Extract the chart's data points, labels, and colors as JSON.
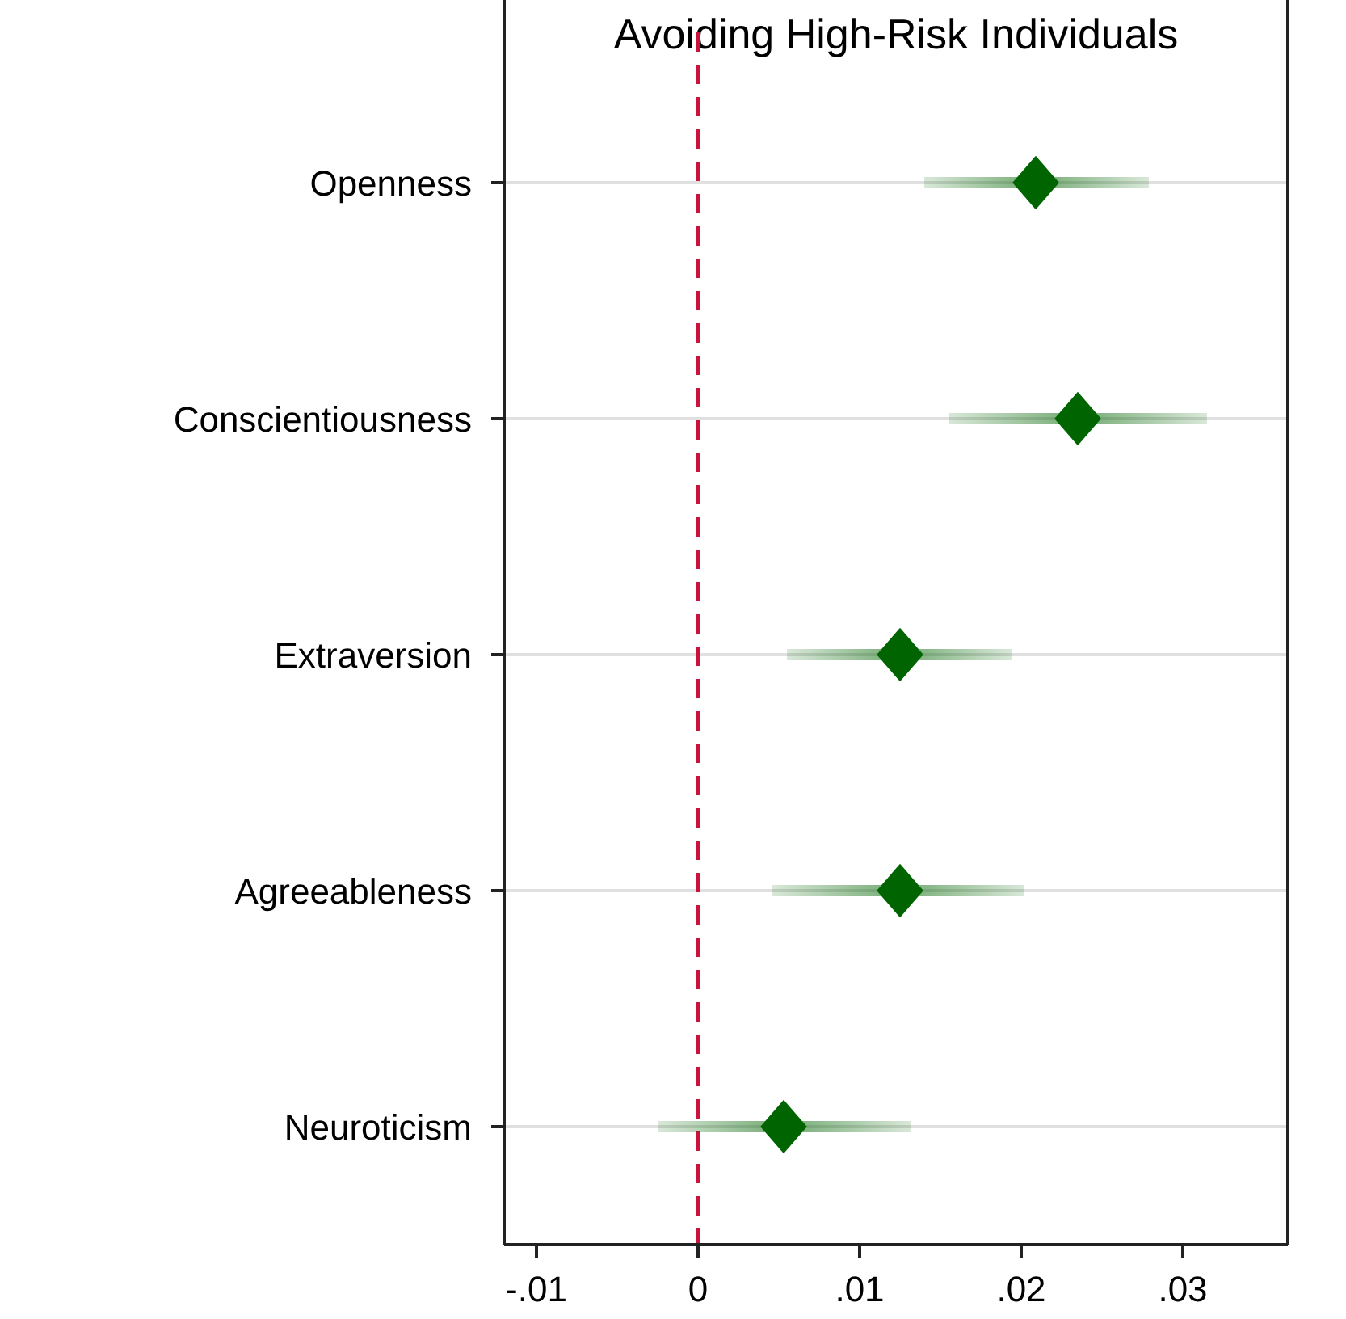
{
  "chart_data": {
    "type": "scatter",
    "orientation": "horizontal",
    "title": "Avoiding High-Risk Individuals",
    "categories": [
      "Openness",
      "Conscientiousness",
      "Extraversion",
      "Agreeableness",
      "Neuroticism"
    ],
    "series": [
      {
        "color": "#006400",
        "values": [
          0.0209,
          0.0235,
          0.0125,
          0.0125,
          0.0053
        ],
        "errors": [
          [
            0.014,
            0.0279
          ],
          [
            0.0155,
            0.0315
          ],
          [
            0.0055,
            0.0194
          ],
          [
            0.0046,
            0.0202
          ],
          [
            -0.0025,
            0.0132
          ]
        ]
      }
    ],
    "xlim": [
      -0.012,
      0.0365
    ],
    "xticks": [
      {
        "value": -0.01,
        "label": "-.01"
      },
      0,
      {
        "value": 0.01,
        "label": ".01"
      },
      {
        "value": 0.02,
        "label": ".02"
      },
      {
        "value": 0.03,
        "label": ".03"
      }
    ],
    "ref_lines": [
      {
        "axis": "x",
        "value": 0,
        "color": "#c8143c",
        "line_style": "dashed"
      }
    ],
    "grid": "y",
    "marker": "diamond"
  }
}
